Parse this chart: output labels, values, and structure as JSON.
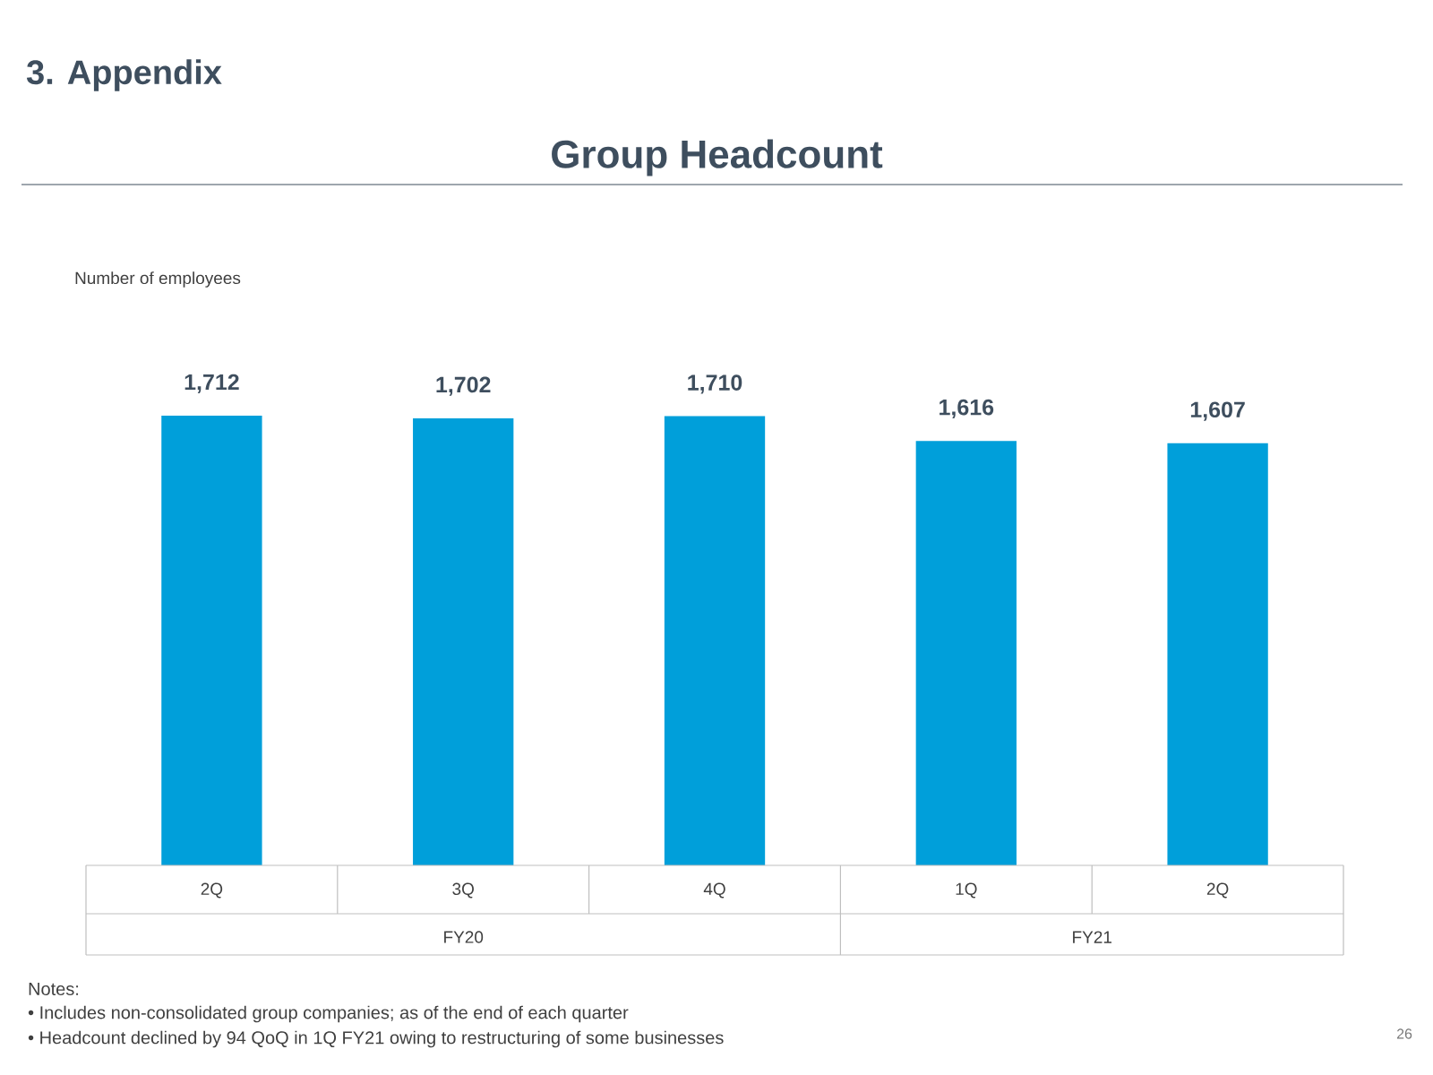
{
  "chart_data": {
    "type": "bar",
    "title": "Group Headcount",
    "subtitle": "3. Appendix",
    "categories": [
      "2Q",
      "3Q",
      "4Q",
      "1Q",
      "2Q"
    ],
    "values": [
      1712,
      1702,
      1710,
      1616,
      1607
    ],
    "value_labels": [
      "1,712",
      "1,702",
      "1,710",
      "1,616",
      "1,607"
    ],
    "color": "#009fda",
    "annotations": [
      "FY20",
      "FY21",
      "Notes:",
      "• Includes non-consolidated group companies; as of the end of each quarter",
      "• Headcount declined by 94 QoQ in 1Q FY21 owing to restructuring of some businesses",
      "26",
      "Number of employees"
    ]
  }
}
